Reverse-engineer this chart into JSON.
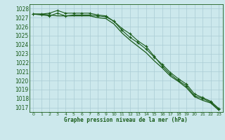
{
  "title": "Graphe pression niveau de la mer (hPa)",
  "bg_color": "#cce8ec",
  "grid_color": "#aaccd4",
  "line_color": "#1a5c1a",
  "x_ticks": [
    0,
    1,
    2,
    3,
    4,
    5,
    6,
    7,
    8,
    9,
    10,
    11,
    12,
    13,
    14,
    15,
    16,
    17,
    18,
    19,
    20,
    21,
    22,
    23
  ],
  "ylim": [
    1016.5,
    1028.5
  ],
  "yticks": [
    1017,
    1018,
    1019,
    1020,
    1021,
    1022,
    1023,
    1024,
    1025,
    1026,
    1027,
    1028
  ],
  "series1": [
    1027.4,
    1027.3,
    1027.2,
    1027.5,
    1027.2,
    1027.3,
    1027.3,
    1027.3,
    1027.2,
    1027.1,
    1026.6,
    1025.8,
    1025.2,
    1024.4,
    1023.8,
    1022.7,
    1021.6,
    1020.7,
    1020.0,
    1019.4,
    1018.3,
    1018.0,
    1017.6,
    1016.8
  ],
  "series2": [
    1027.4,
    1027.4,
    1027.5,
    1027.8,
    1027.5,
    1027.5,
    1027.5,
    1027.5,
    1027.3,
    1027.2,
    1026.6,
    1025.6,
    1024.8,
    1024.2,
    1023.5,
    1022.6,
    1021.8,
    1020.9,
    1020.2,
    1019.6,
    1018.5,
    1018.1,
    1017.7,
    1016.9
  ],
  "series3": [
    1027.4,
    1027.4,
    1027.3,
    1027.2,
    1027.2,
    1027.2,
    1027.2,
    1027.2,
    1027.0,
    1026.9,
    1026.3,
    1025.3,
    1024.5,
    1023.8,
    1023.1,
    1022.2,
    1021.4,
    1020.5,
    1019.9,
    1019.2,
    1018.2,
    1017.8,
    1017.5,
    1016.7
  ],
  "figwidth": 3.2,
  "figheight": 2.0,
  "dpi": 100
}
